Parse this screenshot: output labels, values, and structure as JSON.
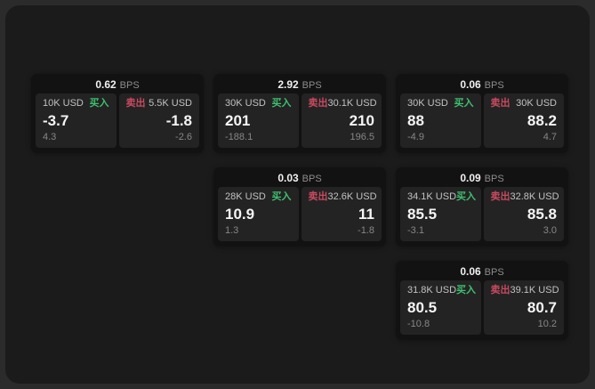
{
  "labels": {
    "buy": "买入",
    "sell": "卖出",
    "bps_unit": "BPS"
  },
  "colors": {
    "buy_green": "#3fbf6f",
    "sell_red": "#c84a5f",
    "window_bg": "#1b1b1b",
    "card_bg": "#121212",
    "panel_bg": "#232323"
  },
  "cards": [
    {
      "bps": "0.62",
      "buy": {
        "size": "10K USD",
        "price": "-3.7",
        "delta": "4.3"
      },
      "sell": {
        "size": "5.5K USD",
        "price": "-1.8",
        "delta": "-2.6"
      }
    },
    {
      "bps": "2.92",
      "buy": {
        "size": "30K USD",
        "price": "201",
        "delta": "-188.1"
      },
      "sell": {
        "size": "30.1K USD",
        "price": "210",
        "delta": "196.5"
      }
    },
    {
      "bps": "0.06",
      "buy": {
        "size": "30K USD",
        "price": "88",
        "delta": "-4.9"
      },
      "sell": {
        "size": "30K USD",
        "price": "88.2",
        "delta": "4.7"
      }
    },
    {
      "bps": "0.03",
      "buy": {
        "size": "28K USD",
        "price": "10.9",
        "delta": "1.3"
      },
      "sell": {
        "size": "32.6K USD",
        "price": "11",
        "delta": "-1.8"
      }
    },
    {
      "bps": "0.09",
      "buy": {
        "size": "34.1K USD",
        "price": "85.5",
        "delta": "-3.1"
      },
      "sell": {
        "size": "32.8K USD",
        "price": "85.8",
        "delta": "3.0"
      }
    },
    {
      "bps": "0.06",
      "buy": {
        "size": "31.8K USD",
        "price": "80.5",
        "delta": "-10.8"
      },
      "sell": {
        "size": "39.1K USD",
        "price": "80.7",
        "delta": "10.2"
      }
    }
  ]
}
